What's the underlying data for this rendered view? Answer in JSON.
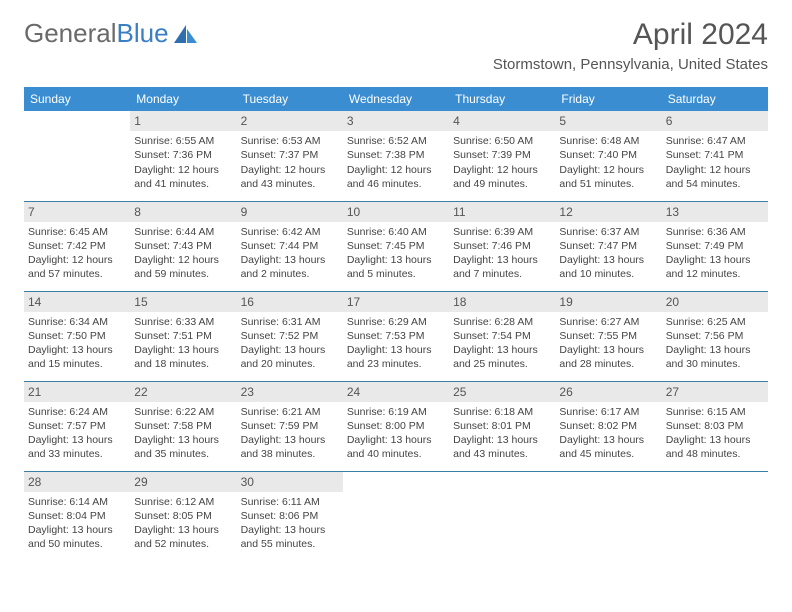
{
  "brand": {
    "part1": "General",
    "part2": "Blue"
  },
  "title": "April 2024",
  "location": "Stormstown, Pennsylvania, United States",
  "colors": {
    "header_bg": "#3a8dd0",
    "header_text": "#ffffff",
    "daynum_bg": "#e9e9e9",
    "cell_border": "#3a7fa8",
    "brand_gray": "#6a6a6a",
    "brand_blue": "#3a7fc4"
  },
  "weekdays": [
    "Sunday",
    "Monday",
    "Tuesday",
    "Wednesday",
    "Thursday",
    "Friday",
    "Saturday"
  ],
  "weeks": [
    [
      {
        "day": "",
        "sunrise": "",
        "sunset": "",
        "daylight": ""
      },
      {
        "day": "1",
        "sunrise": "Sunrise: 6:55 AM",
        "sunset": "Sunset: 7:36 PM",
        "daylight": "Daylight: 12 hours and 41 minutes."
      },
      {
        "day": "2",
        "sunrise": "Sunrise: 6:53 AM",
        "sunset": "Sunset: 7:37 PM",
        "daylight": "Daylight: 12 hours and 43 minutes."
      },
      {
        "day": "3",
        "sunrise": "Sunrise: 6:52 AM",
        "sunset": "Sunset: 7:38 PM",
        "daylight": "Daylight: 12 hours and 46 minutes."
      },
      {
        "day": "4",
        "sunrise": "Sunrise: 6:50 AM",
        "sunset": "Sunset: 7:39 PM",
        "daylight": "Daylight: 12 hours and 49 minutes."
      },
      {
        "day": "5",
        "sunrise": "Sunrise: 6:48 AM",
        "sunset": "Sunset: 7:40 PM",
        "daylight": "Daylight: 12 hours and 51 minutes."
      },
      {
        "day": "6",
        "sunrise": "Sunrise: 6:47 AM",
        "sunset": "Sunset: 7:41 PM",
        "daylight": "Daylight: 12 hours and 54 minutes."
      }
    ],
    [
      {
        "day": "7",
        "sunrise": "Sunrise: 6:45 AM",
        "sunset": "Sunset: 7:42 PM",
        "daylight": "Daylight: 12 hours and 57 minutes."
      },
      {
        "day": "8",
        "sunrise": "Sunrise: 6:44 AM",
        "sunset": "Sunset: 7:43 PM",
        "daylight": "Daylight: 12 hours and 59 minutes."
      },
      {
        "day": "9",
        "sunrise": "Sunrise: 6:42 AM",
        "sunset": "Sunset: 7:44 PM",
        "daylight": "Daylight: 13 hours and 2 minutes."
      },
      {
        "day": "10",
        "sunrise": "Sunrise: 6:40 AM",
        "sunset": "Sunset: 7:45 PM",
        "daylight": "Daylight: 13 hours and 5 minutes."
      },
      {
        "day": "11",
        "sunrise": "Sunrise: 6:39 AM",
        "sunset": "Sunset: 7:46 PM",
        "daylight": "Daylight: 13 hours and 7 minutes."
      },
      {
        "day": "12",
        "sunrise": "Sunrise: 6:37 AM",
        "sunset": "Sunset: 7:47 PM",
        "daylight": "Daylight: 13 hours and 10 minutes."
      },
      {
        "day": "13",
        "sunrise": "Sunrise: 6:36 AM",
        "sunset": "Sunset: 7:49 PM",
        "daylight": "Daylight: 13 hours and 12 minutes."
      }
    ],
    [
      {
        "day": "14",
        "sunrise": "Sunrise: 6:34 AM",
        "sunset": "Sunset: 7:50 PM",
        "daylight": "Daylight: 13 hours and 15 minutes."
      },
      {
        "day": "15",
        "sunrise": "Sunrise: 6:33 AM",
        "sunset": "Sunset: 7:51 PM",
        "daylight": "Daylight: 13 hours and 18 minutes."
      },
      {
        "day": "16",
        "sunrise": "Sunrise: 6:31 AM",
        "sunset": "Sunset: 7:52 PM",
        "daylight": "Daylight: 13 hours and 20 minutes."
      },
      {
        "day": "17",
        "sunrise": "Sunrise: 6:29 AM",
        "sunset": "Sunset: 7:53 PM",
        "daylight": "Daylight: 13 hours and 23 minutes."
      },
      {
        "day": "18",
        "sunrise": "Sunrise: 6:28 AM",
        "sunset": "Sunset: 7:54 PM",
        "daylight": "Daylight: 13 hours and 25 minutes."
      },
      {
        "day": "19",
        "sunrise": "Sunrise: 6:27 AM",
        "sunset": "Sunset: 7:55 PM",
        "daylight": "Daylight: 13 hours and 28 minutes."
      },
      {
        "day": "20",
        "sunrise": "Sunrise: 6:25 AM",
        "sunset": "Sunset: 7:56 PM",
        "daylight": "Daylight: 13 hours and 30 minutes."
      }
    ],
    [
      {
        "day": "21",
        "sunrise": "Sunrise: 6:24 AM",
        "sunset": "Sunset: 7:57 PM",
        "daylight": "Daylight: 13 hours and 33 minutes."
      },
      {
        "day": "22",
        "sunrise": "Sunrise: 6:22 AM",
        "sunset": "Sunset: 7:58 PM",
        "daylight": "Daylight: 13 hours and 35 minutes."
      },
      {
        "day": "23",
        "sunrise": "Sunrise: 6:21 AM",
        "sunset": "Sunset: 7:59 PM",
        "daylight": "Daylight: 13 hours and 38 minutes."
      },
      {
        "day": "24",
        "sunrise": "Sunrise: 6:19 AM",
        "sunset": "Sunset: 8:00 PM",
        "daylight": "Daylight: 13 hours and 40 minutes."
      },
      {
        "day": "25",
        "sunrise": "Sunrise: 6:18 AM",
        "sunset": "Sunset: 8:01 PM",
        "daylight": "Daylight: 13 hours and 43 minutes."
      },
      {
        "day": "26",
        "sunrise": "Sunrise: 6:17 AM",
        "sunset": "Sunset: 8:02 PM",
        "daylight": "Daylight: 13 hours and 45 minutes."
      },
      {
        "day": "27",
        "sunrise": "Sunrise: 6:15 AM",
        "sunset": "Sunset: 8:03 PM",
        "daylight": "Daylight: 13 hours and 48 minutes."
      }
    ],
    [
      {
        "day": "28",
        "sunrise": "Sunrise: 6:14 AM",
        "sunset": "Sunset: 8:04 PM",
        "daylight": "Daylight: 13 hours and 50 minutes."
      },
      {
        "day": "29",
        "sunrise": "Sunrise: 6:12 AM",
        "sunset": "Sunset: 8:05 PM",
        "daylight": "Daylight: 13 hours and 52 minutes."
      },
      {
        "day": "30",
        "sunrise": "Sunrise: 6:11 AM",
        "sunset": "Sunset: 8:06 PM",
        "daylight": "Daylight: 13 hours and 55 minutes."
      },
      {
        "day": "",
        "sunrise": "",
        "sunset": "",
        "daylight": ""
      },
      {
        "day": "",
        "sunrise": "",
        "sunset": "",
        "daylight": ""
      },
      {
        "day": "",
        "sunrise": "",
        "sunset": "",
        "daylight": ""
      },
      {
        "day": "",
        "sunrise": "",
        "sunset": "",
        "daylight": ""
      }
    ]
  ]
}
